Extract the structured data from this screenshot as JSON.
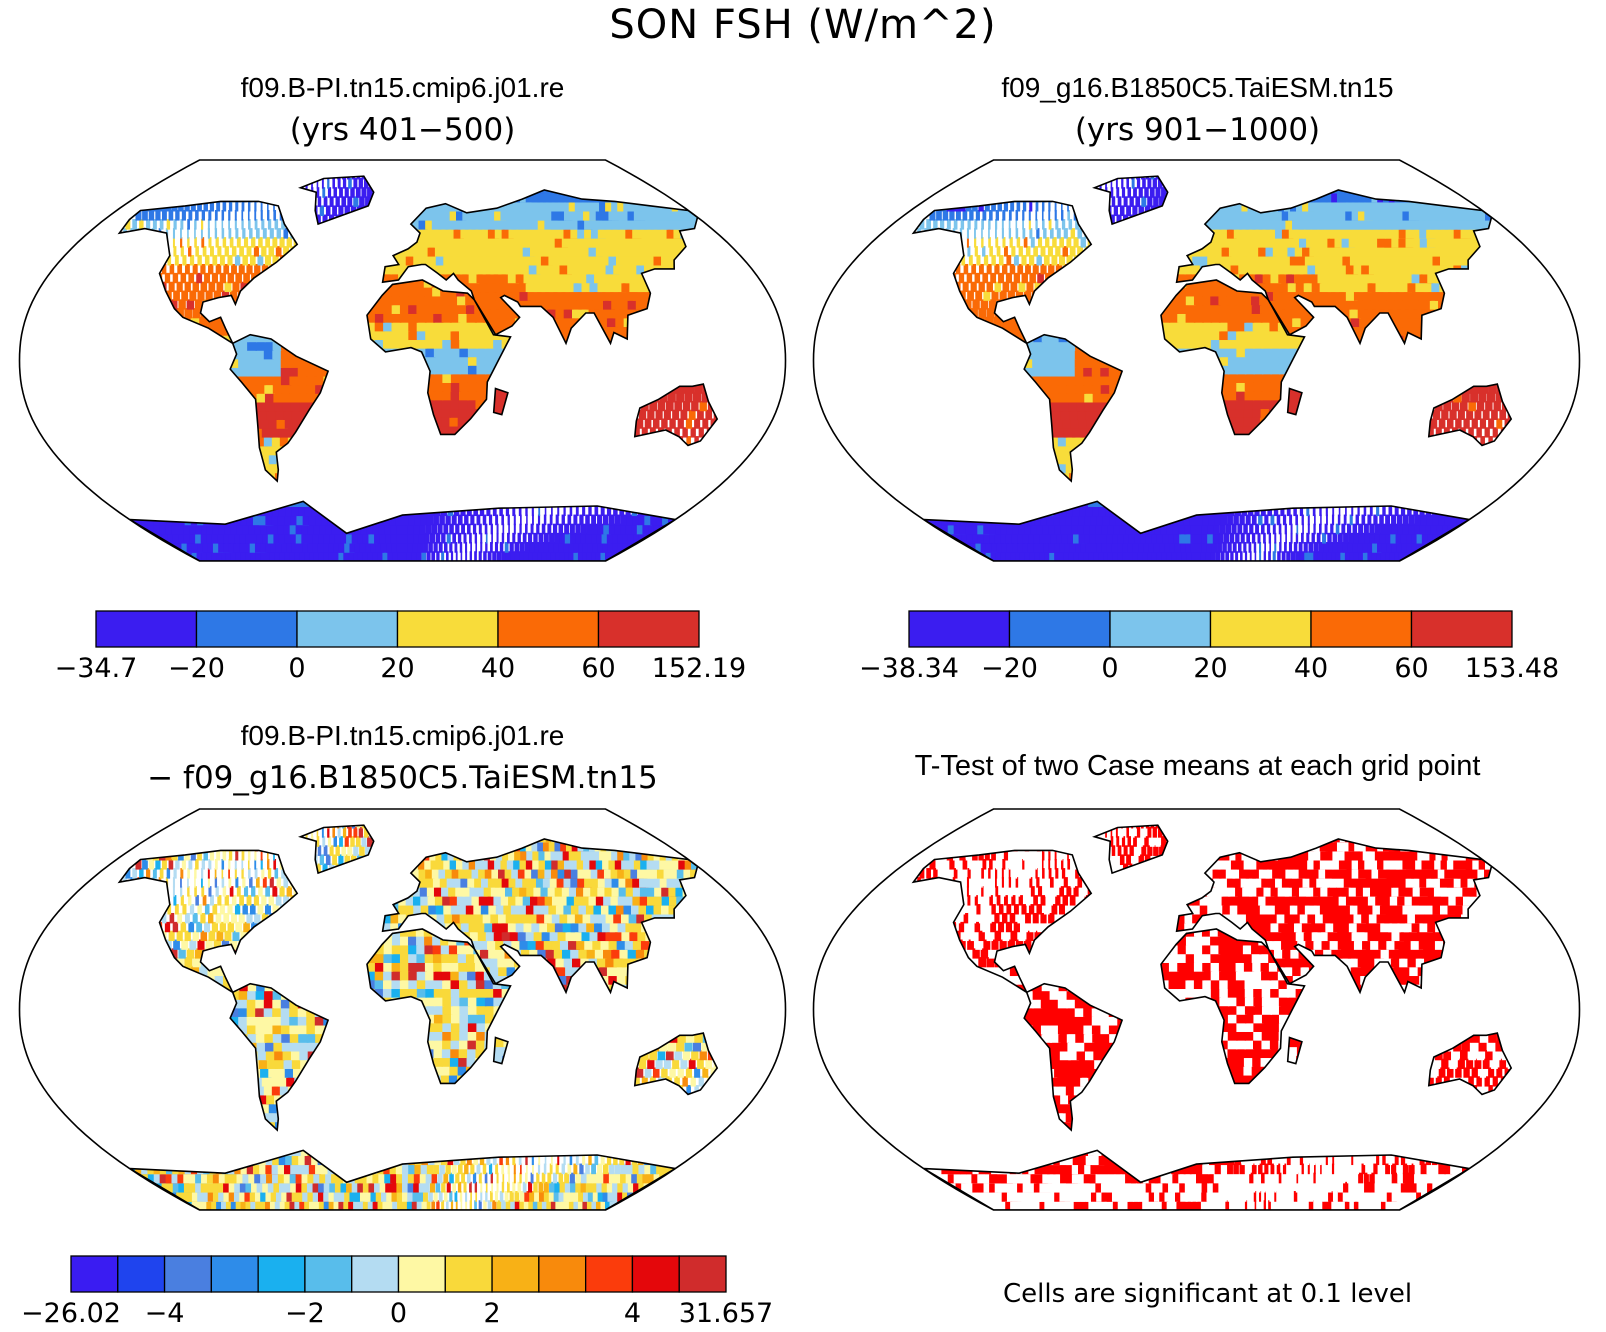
{
  "title": "SON FSH (W/m^2)",
  "panels": [
    {
      "id": "case1",
      "title": "f09.B-PI.tn15.cmip6.j01.re",
      "subtitle": "(yrs 401−500)",
      "colorbar": {
        "colors": [
          "#3b1df0",
          "#2e78e6",
          "#7cc4ec",
          "#f8dc3a",
          "#fa6a06",
          "#d8302b"
        ],
        "labels": [
          "−34.7",
          "−20",
          "0",
          "20",
          "40",
          "60",
          "152.19"
        ]
      }
    },
    {
      "id": "case2",
      "title": "f09_g16.B1850C5.TaiESM.tn15",
      "subtitle": "(yrs 901−1000)",
      "colorbar": {
        "colors": [
          "#3b1df0",
          "#2e78e6",
          "#7cc4ec",
          "#f8dc3a",
          "#fa6a06",
          "#d8302b"
        ],
        "labels": [
          "−38.34",
          "−20",
          "0",
          "20",
          "40",
          "60",
          "153.48"
        ]
      }
    },
    {
      "id": "diff",
      "title": "f09.B-PI.tn15.cmip6.j01.re",
      "subtitle": "− f09_g16.B1850C5.TaiESM.tn15",
      "colorbar": {
        "colors": [
          "#3a1cf2",
          "#1f44ee",
          "#4a7fe0",
          "#2e8ce9",
          "#1ab0ef",
          "#58bdeb",
          "#b4dcf2",
          "#fef8a4",
          "#f9d93a",
          "#f8b116",
          "#f88a0c",
          "#fb3c0c",
          "#e4070b",
          "#d02c2c"
        ],
        "labels": [
          "−26.02",
          "−4",
          "−2",
          "0",
          "2",
          "4",
          "31.657"
        ]
      }
    },
    {
      "id": "ttest",
      "title": "T-Test of two Case means at each grid point",
      "note": "Cells are significant at 0.1 level",
      "sig_color": "#ff0000"
    }
  ]
}
